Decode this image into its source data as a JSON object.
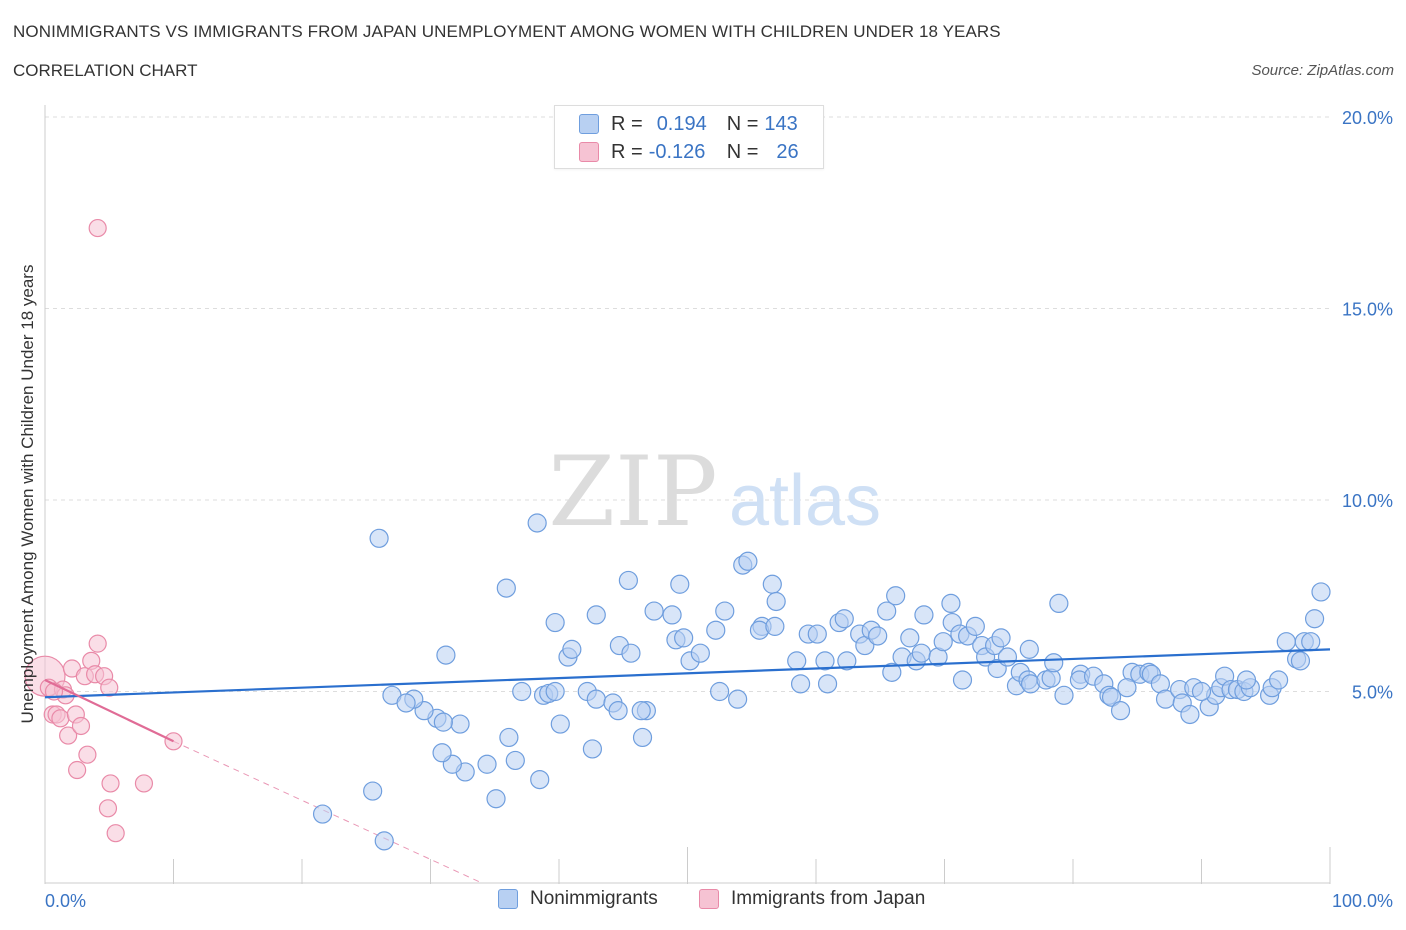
{
  "header": {
    "title": "NONIMMIGRANTS VS IMMIGRANTS FROM JAPAN UNEMPLOYMENT AMONG WOMEN WITH CHILDREN UNDER 18 YEARS",
    "subtitle": "CORRELATION CHART",
    "source": "Source: ZipAtlas.com"
  },
  "watermark": {
    "zip": "ZIP",
    "atlas": "atlas"
  },
  "legend": {
    "rows": [
      {
        "r_label": "R =",
        "r_value": "0.194",
        "n_label": "N =",
        "n_value": "143"
      },
      {
        "r_label": "R =",
        "r_value": "-0.126",
        "n_label": "N =",
        "n_value": "26"
      }
    ]
  },
  "colors": {
    "blue_fill": "#b8d0f2",
    "blue_stroke": "#6f9ede",
    "blue_line": "#2a6fce",
    "pink_fill": "#f6c3d3",
    "pink_stroke": "#e98aa8",
    "pink_line": "#e06c96",
    "grid": "#dddddd",
    "tick_text": "#3a74c4"
  },
  "chart_data": {
    "type": "scatter",
    "title": "NONIMMIGRANTS VS IMMIGRANTS FROM JAPAN UNEMPLOYMENT AMONG WOMEN WITH CHILDREN UNDER 18 YEARS",
    "xlabel": "",
    "ylabel": "Unemployment Among Women with Children Under 18 years",
    "xlim": [
      0,
      100
    ],
    "ylim": [
      0,
      20
    ],
    "x_tick_labels": [
      "0.0%",
      "100.0%"
    ],
    "y_ticks": [
      5,
      10,
      15,
      20
    ],
    "y_tick_labels": [
      "5.0%",
      "10.0%",
      "15.0%",
      "20.0%"
    ],
    "grid": true,
    "legend_position": "bottom",
    "series": [
      {
        "name": "Nonimmigrants",
        "r": 0.194,
        "n": 143,
        "trend": [
          [
            0,
            4.85
          ],
          [
            100,
            6.1
          ]
        ],
        "points": [
          [
            21.6,
            1.8
          ],
          [
            25.5,
            2.4
          ],
          [
            26.4,
            1.1
          ],
          [
            26,
            9
          ],
          [
            31.2,
            5.95
          ],
          [
            30.5,
            4.3
          ],
          [
            29.5,
            4.5
          ],
          [
            28.7,
            4.8
          ],
          [
            27,
            4.9
          ],
          [
            28.1,
            4.7
          ],
          [
            32.7,
            2.9
          ],
          [
            31.7,
            3.1
          ],
          [
            32.3,
            4.15
          ],
          [
            31,
            4.2
          ],
          [
            30.9,
            3.4
          ],
          [
            34.4,
            3.1
          ],
          [
            35.1,
            2.2
          ],
          [
            36.1,
            3.8
          ],
          [
            35.9,
            7.7
          ],
          [
            36.6,
            3.2
          ],
          [
            37.1,
            5
          ],
          [
            38.8,
            4.9
          ],
          [
            38.5,
            2.7
          ],
          [
            38.3,
            9.4
          ],
          [
            39.2,
            4.95
          ],
          [
            39.7,
            5.0
          ],
          [
            39.7,
            6.8
          ],
          [
            40.1,
            4.15
          ],
          [
            40.7,
            5.9
          ],
          [
            41,
            6.1
          ],
          [
            42.2,
            5.0
          ],
          [
            42.6,
            3.5
          ],
          [
            42.9,
            4.8
          ],
          [
            42.9,
            7
          ],
          [
            44.7,
            6.2
          ],
          [
            44.2,
            4.7
          ],
          [
            44.6,
            4.5
          ],
          [
            45.4,
            7.9
          ],
          [
            45.6,
            6
          ],
          [
            46.5,
            3.8
          ],
          [
            46.8,
            4.5
          ],
          [
            46.4,
            4.5
          ],
          [
            47.4,
            7.1
          ],
          [
            49.1,
            6.35
          ],
          [
            48.8,
            7
          ],
          [
            49.7,
            6.4
          ],
          [
            50.2,
            5.8
          ],
          [
            49.4,
            7.8
          ],
          [
            51,
            6
          ],
          [
            52.5,
            5.0
          ],
          [
            52.2,
            6.6
          ],
          [
            52.9,
            7.1
          ],
          [
            53.9,
            4.8
          ],
          [
            54.3,
            8.3
          ],
          [
            54.7,
            8.4
          ],
          [
            55.8,
            6.7
          ],
          [
            55.6,
            6.6
          ],
          [
            56.6,
            7.8
          ],
          [
            56.9,
            7.35
          ],
          [
            56.8,
            6.7
          ],
          [
            58.5,
            5.8
          ],
          [
            58.8,
            5.2
          ],
          [
            59.4,
            6.5
          ],
          [
            60.1,
            6.5
          ],
          [
            60.7,
            5.8
          ],
          [
            60.9,
            5.2
          ],
          [
            61.8,
            6.8
          ],
          [
            62.2,
            6.9
          ],
          [
            62.4,
            5.8
          ],
          [
            63.4,
            6.5
          ],
          [
            63.8,
            6.2
          ],
          [
            64.3,
            6.6
          ],
          [
            64.8,
            6.45
          ],
          [
            65.5,
            7.1
          ],
          [
            65.9,
            5.5
          ],
          [
            66.2,
            7.5
          ],
          [
            66.7,
            5.9
          ],
          [
            67.3,
            6.4
          ],
          [
            67.8,
            5.8
          ],
          [
            68.4,
            7.0
          ],
          [
            68.2,
            6.0
          ],
          [
            69.5,
            5.9
          ],
          [
            69.9,
            6.3
          ],
          [
            70.5,
            7.3
          ],
          [
            70.6,
            6.8
          ],
          [
            71.2,
            6.5
          ],
          [
            71.4,
            5.3
          ],
          [
            71.8,
            6.45
          ],
          [
            72.4,
            6.7
          ],
          [
            72.9,
            6.2
          ],
          [
            73.2,
            5.9
          ],
          [
            73.9,
            6.2
          ],
          [
            74.1,
            5.6
          ],
          [
            74.4,
            6.4
          ],
          [
            74.9,
            5.9
          ],
          [
            75.6,
            5.15
          ],
          [
            75.9,
            5.5
          ],
          [
            76.5,
            5.3
          ],
          [
            76.6,
            6.1
          ],
          [
            76.7,
            5.2
          ],
          [
            77.9,
            5.3
          ],
          [
            78.3,
            5.35
          ],
          [
            78.5,
            5.75
          ],
          [
            78.9,
            7.3
          ],
          [
            79.3,
            4.9
          ],
          [
            80.6,
            5.45
          ],
          [
            80.5,
            5.3
          ],
          [
            81.6,
            5.4
          ],
          [
            82.4,
            5.2
          ],
          [
            82.8,
            4.9
          ],
          [
            83,
            4.85
          ],
          [
            83.7,
            4.5
          ],
          [
            84.6,
            5.5
          ],
          [
            85.2,
            5.45
          ],
          [
            85.9,
            5.5
          ],
          [
            86.1,
            5.45
          ],
          [
            86.8,
            5.2
          ],
          [
            87.2,
            4.8
          ],
          [
            88.3,
            5.05
          ],
          [
            88.5,
            4.7
          ],
          [
            89.1,
            4.4
          ],
          [
            89.4,
            5.1
          ],
          [
            90.6,
            4.6
          ],
          [
            91.1,
            4.9
          ],
          [
            91.5,
            5.1
          ],
          [
            91.8,
            5.4
          ],
          [
            92.3,
            5.05
          ],
          [
            92.8,
            5.05
          ],
          [
            93.3,
            5.0
          ],
          [
            93.8,
            5.1
          ],
          [
            93.5,
            5.3
          ],
          [
            95.3,
            4.9
          ],
          [
            95.5,
            5.1
          ],
          [
            96,
            5.3
          ],
          [
            96.6,
            6.3
          ],
          [
            97.4,
            5.85
          ],
          [
            98.0,
            6.3
          ],
          [
            98.5,
            6.3
          ],
          [
            98.8,
            6.9
          ],
          [
            97.7,
            5.8
          ],
          [
            99.3,
            7.6
          ],
          [
            90.0,
            5.0
          ],
          [
            84.2,
            5.1
          ]
        ]
      },
      {
        "name": "Immigrants from Japan",
        "r": -0.126,
        "n": 26,
        "trend": [
          [
            0,
            5.3
          ],
          [
            10,
            3.7
          ]
        ],
        "trend_extension": [
          [
            10,
            3.7
          ],
          [
            34,
            0
          ]
        ],
        "points": [
          [
            0,
            5.4
          ],
          [
            0.3,
            5.1
          ],
          [
            0.6,
            4.4
          ],
          [
            0.9,
            4.4
          ],
          [
            1.2,
            4.3
          ],
          [
            1.4,
            5.05
          ],
          [
            1.6,
            4.9
          ],
          [
            1.8,
            3.85
          ],
          [
            2.1,
            5.6
          ],
          [
            2.4,
            4.4
          ],
          [
            2.5,
            2.95
          ],
          [
            2.8,
            4.1
          ],
          [
            3.1,
            5.4
          ],
          [
            3.3,
            3.35
          ],
          [
            3.6,
            5.8
          ],
          [
            3.9,
            5.45
          ],
          [
            4.1,
            6.25
          ],
          [
            4.1,
            17.1
          ],
          [
            4.6,
            5.4
          ],
          [
            4.9,
            1.95
          ],
          [
            5,
            5.1
          ],
          [
            5.1,
            2.6
          ],
          [
            5.5,
            1.3
          ],
          [
            7.7,
            2.6
          ],
          [
            10,
            3.7
          ],
          [
            0.7,
            5.0
          ]
        ]
      }
    ]
  }
}
